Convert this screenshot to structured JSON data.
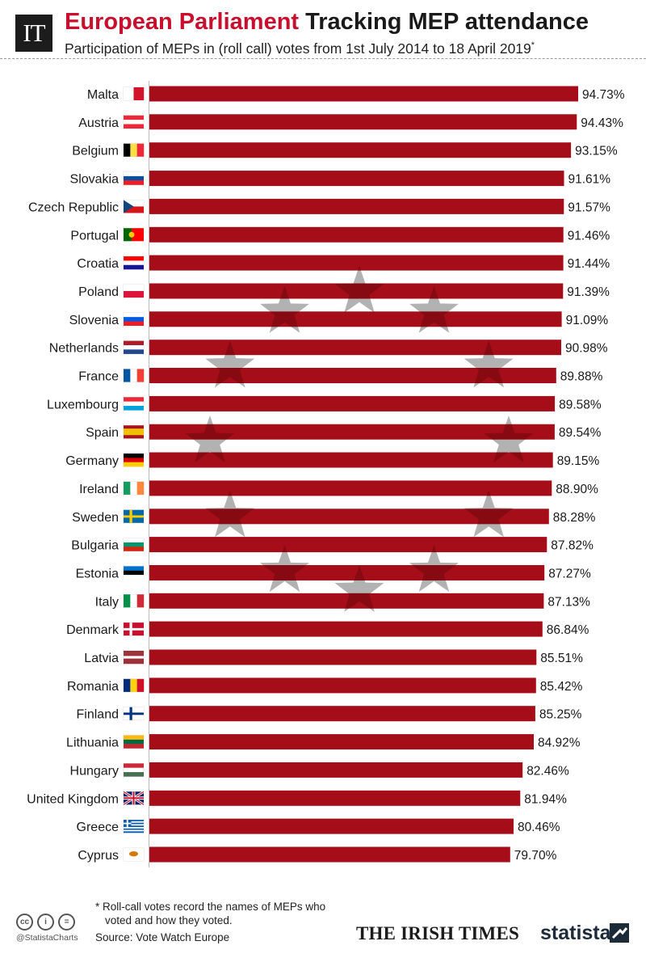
{
  "header": {
    "logo_text": "IT",
    "title_accent": "European Parliament",
    "title_main": "Tracking MEP attendance",
    "subtitle": "Participation of MEPs in (roll call) votes from 1st July 2014 to 18 April 2019",
    "subtitle_mark": "*"
  },
  "chart_data": {
    "type": "bar",
    "orientation": "horizontal",
    "categories": [
      "Malta",
      "Austria",
      "Belgium",
      "Slovakia",
      "Czech Republic",
      "Portugal",
      "Croatia",
      "Poland",
      "Slovenia",
      "Netherlands",
      "France",
      "Luxembourg",
      "Spain",
      "Germany",
      "Ireland",
      "Sweden",
      "Bulgaria",
      "Estonia",
      "Italy",
      "Denmark",
      "Latvia",
      "Romania",
      "Finland",
      "Lithuania",
      "Hungary",
      "United Kingdom",
      "Greece",
      "Cyprus"
    ],
    "values": [
      94.73,
      94.43,
      93.15,
      91.61,
      91.57,
      91.46,
      91.44,
      91.39,
      91.09,
      90.98,
      89.88,
      89.58,
      89.54,
      89.15,
      88.9,
      88.28,
      87.82,
      87.27,
      87.13,
      86.84,
      85.51,
      85.42,
      85.25,
      84.92,
      82.46,
      81.94,
      80.46,
      79.7
    ],
    "value_labels": [
      "94.73%",
      "94.43%",
      "93.15%",
      "91.61%",
      "91.57%",
      "91.46%",
      "91.44%",
      "91.39%",
      "91.09%",
      "90.98%",
      "89.88%",
      "89.58%",
      "89.54%",
      "89.15%",
      "88.90%",
      "88.28%",
      "87.82%",
      "87.27%",
      "87.13%",
      "86.84%",
      "85.51%",
      "85.42%",
      "85.25%",
      "84.92%",
      "82.46%",
      "81.94%",
      "80.46%",
      "79.70%"
    ],
    "unit": "%",
    "xlim": [
      0,
      94.73
    ],
    "bar_color": "#a50d18",
    "background_decoration": "ring of twelve stars",
    "grid": false,
    "legend": "none"
  },
  "flags": [
    {
      "country": "Malta",
      "type": "v",
      "colors": [
        "#ffffff",
        "#cf142b"
      ]
    },
    {
      "country": "Austria",
      "type": "h",
      "colors": [
        "#ed2939",
        "#ffffff",
        "#ed2939"
      ]
    },
    {
      "country": "Belgium",
      "type": "v",
      "colors": [
        "#000000",
        "#fae042",
        "#ed2939"
      ]
    },
    {
      "country": "Slovakia",
      "type": "h",
      "colors": [
        "#ffffff",
        "#0b4ea2",
        "#ee1c25"
      ]
    },
    {
      "country": "Czech Republic",
      "type": "cz",
      "colors": [
        "#ffffff",
        "#d7141a",
        "#11457e"
      ]
    },
    {
      "country": "Portugal",
      "type": "vw",
      "colors": [
        "#006600",
        "#ff0000"
      ]
    },
    {
      "country": "Croatia",
      "type": "h",
      "colors": [
        "#ff0000",
        "#ffffff",
        "#171796"
      ]
    },
    {
      "country": "Poland",
      "type": "h",
      "colors": [
        "#ffffff",
        "#dc143c"
      ]
    },
    {
      "country": "Slovenia",
      "type": "h",
      "colors": [
        "#ffffff",
        "#005ce5",
        "#ed1c24"
      ]
    },
    {
      "country": "Netherlands",
      "type": "h",
      "colors": [
        "#ae1c28",
        "#ffffff",
        "#21468b"
      ]
    },
    {
      "country": "France",
      "type": "v",
      "colors": [
        "#0055a4",
        "#ffffff",
        "#ef4135"
      ]
    },
    {
      "country": "Luxembourg",
      "type": "h",
      "colors": [
        "#ed2939",
        "#ffffff",
        "#00a1de"
      ]
    },
    {
      "country": "Spain",
      "type": "h",
      "colors": [
        "#aa151b",
        "#f1bf00",
        "#f1bf00",
        "#aa151b"
      ]
    },
    {
      "country": "Germany",
      "type": "h",
      "colors": [
        "#000000",
        "#dd0000",
        "#ffce00"
      ]
    },
    {
      "country": "Ireland",
      "type": "v",
      "colors": [
        "#169b62",
        "#ffffff",
        "#ff883e"
      ]
    },
    {
      "country": "Sweden",
      "type": "cross",
      "colors": [
        "#006aa7",
        "#fecc00"
      ]
    },
    {
      "country": "Bulgaria",
      "type": "h",
      "colors": [
        "#ffffff",
        "#00966e",
        "#d62612"
      ]
    },
    {
      "country": "Estonia",
      "type": "h",
      "colors": [
        "#0072ce",
        "#000000",
        "#ffffff"
      ]
    },
    {
      "country": "Italy",
      "type": "v",
      "colors": [
        "#009246",
        "#ffffff",
        "#ce2b37"
      ]
    },
    {
      "country": "Denmark",
      "type": "cross",
      "colors": [
        "#c8102e",
        "#ffffff"
      ]
    },
    {
      "country": "Latvia",
      "type": "h",
      "colors": [
        "#9e3039",
        "#9e3039",
        "#ffffff",
        "#9e3039",
        "#9e3039"
      ]
    },
    {
      "country": "Romania",
      "type": "v",
      "colors": [
        "#002b7f",
        "#fcd116",
        "#ce1126"
      ]
    },
    {
      "country": "Finland",
      "type": "cross",
      "colors": [
        "#ffffff",
        "#003580"
      ]
    },
    {
      "country": "Lithuania",
      "type": "h",
      "colors": [
        "#fdb913",
        "#006a44",
        "#c1272d"
      ]
    },
    {
      "country": "Hungary",
      "type": "h",
      "colors": [
        "#ce2939",
        "#ffffff",
        "#477050"
      ]
    },
    {
      "country": "United Kingdom",
      "type": "uk",
      "colors": [
        "#012169",
        "#ffffff",
        "#c8102e"
      ]
    },
    {
      "country": "Greece",
      "type": "gr",
      "colors": [
        "#0d5eaf",
        "#ffffff"
      ]
    },
    {
      "country": "Cyprus",
      "type": "cy",
      "colors": [
        "#ffffff",
        "#d57800"
      ]
    }
  ],
  "footer": {
    "license_icons": [
      "cc",
      "i",
      "="
    ],
    "statista_handle": "@StatistaCharts",
    "footnote_line1": "* Roll-call votes record the names of MEPs who",
    "footnote_line2": "voted and how they voted.",
    "source": "Source: Vote Watch Europe",
    "brand_irish_times": "THE IRISH TIMES",
    "brand_statista": "statista"
  }
}
